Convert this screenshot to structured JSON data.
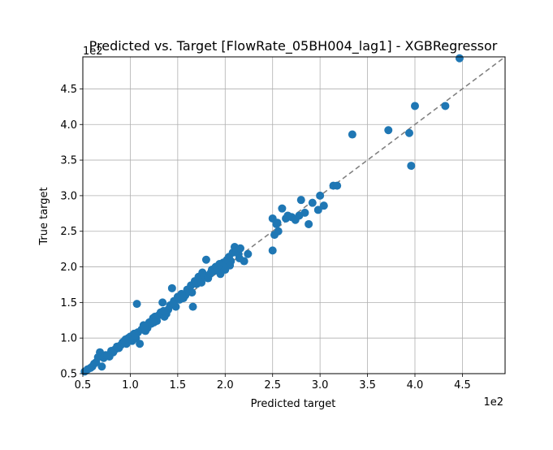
{
  "chart_data": {
    "type": "scatter",
    "title": "Predicted vs. Target [FlowRate_05BH004_lag1] - XGBRegressor",
    "xlabel": "Predicted target",
    "ylabel": "True target",
    "x_offset_text": "1e2",
    "y_offset_text": "1e2",
    "xlim": [
      0.5,
      4.95
    ],
    "ylim": [
      0.5,
      4.95
    ],
    "xticks": [
      0.5,
      1.0,
      1.5,
      2.0,
      2.5,
      3.0,
      3.5,
      4.0,
      4.5
    ],
    "yticks": [
      0.5,
      1.0,
      1.5,
      2.0,
      2.5,
      3.0,
      3.5,
      4.0,
      4.5
    ],
    "xtick_labels": [
      "0.5",
      "1.0",
      "1.5",
      "2.0",
      "2.5",
      "3.0",
      "3.5",
      "4.0",
      "4.5"
    ],
    "ytick_labels": [
      "0.5",
      "1.0",
      "1.5",
      "2.0",
      "2.5",
      "3.0",
      "3.5",
      "4.0",
      "4.5"
    ],
    "grid": true,
    "point_color": "#1f77b4",
    "reference_line": {
      "style": "dashed",
      "color": "#808080",
      "from": [
        0.5,
        0.5
      ],
      "to": [
        4.95,
        4.95
      ]
    },
    "points": [
      [
        0.52,
        0.53
      ],
      [
        0.55,
        0.56
      ],
      [
        0.58,
        0.58
      ],
      [
        0.6,
        0.6
      ],
      [
        0.62,
        0.64
      ],
      [
        0.64,
        0.66
      ],
      [
        0.66,
        0.73
      ],
      [
        0.68,
        0.8
      ],
      [
        0.7,
        0.6
      ],
      [
        0.72,
        0.72
      ],
      [
        0.74,
        0.76
      ],
      [
        0.76,
        0.76
      ],
      [
        0.78,
        0.74
      ],
      [
        0.8,
        0.82
      ],
      [
        0.82,
        0.8
      ],
      [
        0.84,
        0.84
      ],
      [
        0.86,
        0.88
      ],
      [
        0.88,
        0.86
      ],
      [
        0.9,
        0.9
      ],
      [
        0.92,
        0.94
      ],
      [
        0.94,
        0.96
      ],
      [
        0.96,
        0.92
      ],
      [
        0.98,
        1.0
      ],
      [
        1.0,
        1.02
      ],
      [
        1.02,
        0.96
      ],
      [
        1.04,
        1.06
      ],
      [
        1.06,
        1.0
      ],
      [
        1.08,
        1.08
      ],
      [
        1.07,
        1.48
      ],
      [
        1.1,
        0.92
      ],
      [
        1.12,
        1.12
      ],
      [
        1.14,
        1.18
      ],
      [
        1.16,
        1.1
      ],
      [
        1.18,
        1.14
      ],
      [
        1.2,
        1.22
      ],
      [
        1.22,
        1.2
      ],
      [
        1.24,
        1.28
      ],
      [
        1.26,
        1.3
      ],
      [
        1.28,
        1.24
      ],
      [
        1.3,
        1.32
      ],
      [
        1.32,
        1.36
      ],
      [
        1.34,
        1.5
      ],
      [
        1.36,
        1.3
      ],
      [
        1.38,
        1.34
      ],
      [
        1.4,
        1.4
      ],
      [
        1.42,
        1.46
      ],
      [
        1.44,
        1.7
      ],
      [
        1.46,
        1.52
      ],
      [
        1.48,
        1.44
      ],
      [
        1.5,
        1.58
      ],
      [
        1.52,
        1.54
      ],
      [
        1.54,
        1.62
      ],
      [
        1.56,
        1.56
      ],
      [
        1.58,
        1.6
      ],
      [
        1.6,
        1.68
      ],
      [
        1.62,
        1.66
      ],
      [
        1.64,
        1.74
      ],
      [
        1.66,
        1.44
      ],
      [
        1.68,
        1.8
      ],
      [
        1.7,
        1.76
      ],
      [
        1.72,
        1.86
      ],
      [
        1.74,
        1.82
      ],
      [
        1.76,
        1.92
      ],
      [
        1.78,
        1.88
      ],
      [
        1.8,
        2.1
      ],
      [
        1.82,
        1.84
      ],
      [
        1.84,
        1.9
      ],
      [
        1.86,
        1.96
      ],
      [
        1.88,
        1.94
      ],
      [
        1.9,
        2.0
      ],
      [
        1.92,
        1.98
      ],
      [
        1.94,
        2.04
      ],
      [
        1.96,
        2.02
      ],
      [
        1.98,
        2.06
      ],
      [
        2.0,
        1.96
      ],
      [
        2.02,
        2.1
      ],
      [
        2.04,
        2.14
      ],
      [
        2.06,
        2.08
      ],
      [
        2.08,
        2.2
      ],
      [
        2.1,
        2.28
      ],
      [
        2.12,
        2.22
      ],
      [
        2.14,
        2.18
      ],
      [
        2.16,
        2.26
      ],
      [
        2.2,
        2.08
      ],
      [
        2.24,
        2.18
      ],
      [
        2.5,
        2.23
      ],
      [
        2.52,
        2.45
      ],
      [
        2.54,
        2.6
      ],
      [
        2.56,
        2.5
      ],
      [
        2.6,
        2.82
      ],
      [
        2.64,
        2.68
      ],
      [
        2.7,
        2.7
      ],
      [
        2.74,
        2.66
      ],
      [
        2.78,
        2.72
      ],
      [
        2.8,
        2.94
      ],
      [
        2.84,
        2.76
      ],
      [
        2.88,
        2.6
      ],
      [
        2.92,
        2.9
      ],
      [
        2.98,
        2.8
      ],
      [
        3.0,
        3.0
      ],
      [
        3.04,
        2.86
      ],
      [
        3.14,
        3.14
      ],
      [
        3.18,
        3.14
      ],
      [
        3.34,
        3.86
      ],
      [
        3.72,
        3.92
      ],
      [
        3.94,
        3.88
      ],
      [
        3.96,
        3.42
      ],
      [
        4.0,
        4.26
      ],
      [
        4.32,
        4.26
      ],
      [
        4.47,
        4.93
      ],
      [
        0.95,
        0.98
      ],
      [
        1.05,
        1.04
      ],
      [
        1.15,
        1.16
      ],
      [
        1.25,
        1.22
      ],
      [
        1.35,
        1.38
      ],
      [
        1.45,
        1.48
      ],
      [
        1.55,
        1.58
      ],
      [
        1.65,
        1.64
      ],
      [
        1.75,
        1.78
      ],
      [
        1.85,
        1.92
      ],
      [
        1.95,
        1.9
      ],
      [
        2.05,
        2.02
      ],
      [
        2.15,
        2.12
      ],
      [
        2.5,
        2.68
      ],
      [
        2.55,
        2.62
      ],
      [
        2.66,
        2.72
      ]
    ]
  }
}
